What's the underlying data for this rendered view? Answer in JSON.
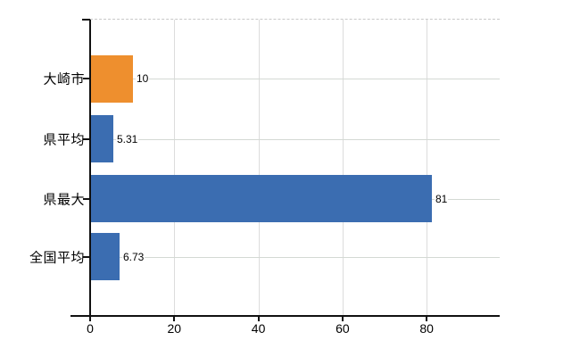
{
  "chart_data": {
    "type": "bar",
    "orientation": "horizontal",
    "title": "",
    "xlabel": "",
    "ylabel": "",
    "categories": [
      "大崎市",
      "県平均",
      "県最大",
      "全国平均"
    ],
    "values": [
      10,
      5.31,
      81,
      6.73
    ],
    "value_labels": [
      "10",
      "5.31",
      "81",
      "6.73"
    ],
    "bar_colors": [
      "#ee8f2e",
      "#3b6db1",
      "#3b6db1",
      "#3b6db1"
    ],
    "x_ticks": [
      0,
      20,
      40,
      60,
      80
    ],
    "x_tick_labels": [
      "0",
      "20",
      "40",
      "60",
      "80"
    ],
    "xlim": [
      0,
      97.4
    ],
    "grid": {
      "vertical_gridlines_at_ticks": true,
      "horizontal_gridline_per_category": true,
      "top_border_style": "dashed"
    },
    "legend_position": "none"
  },
  "colors": {
    "bar_blue": "#3b6db1",
    "bar_orange": "#ee8f2e",
    "axis": "#111111",
    "gridline_horizontal": "#d4d9d4",
    "gridline_vertical": "#dcdcdc",
    "top_border": "#c9c9c9",
    "text": "#000000",
    "background": "#ffffff"
  }
}
